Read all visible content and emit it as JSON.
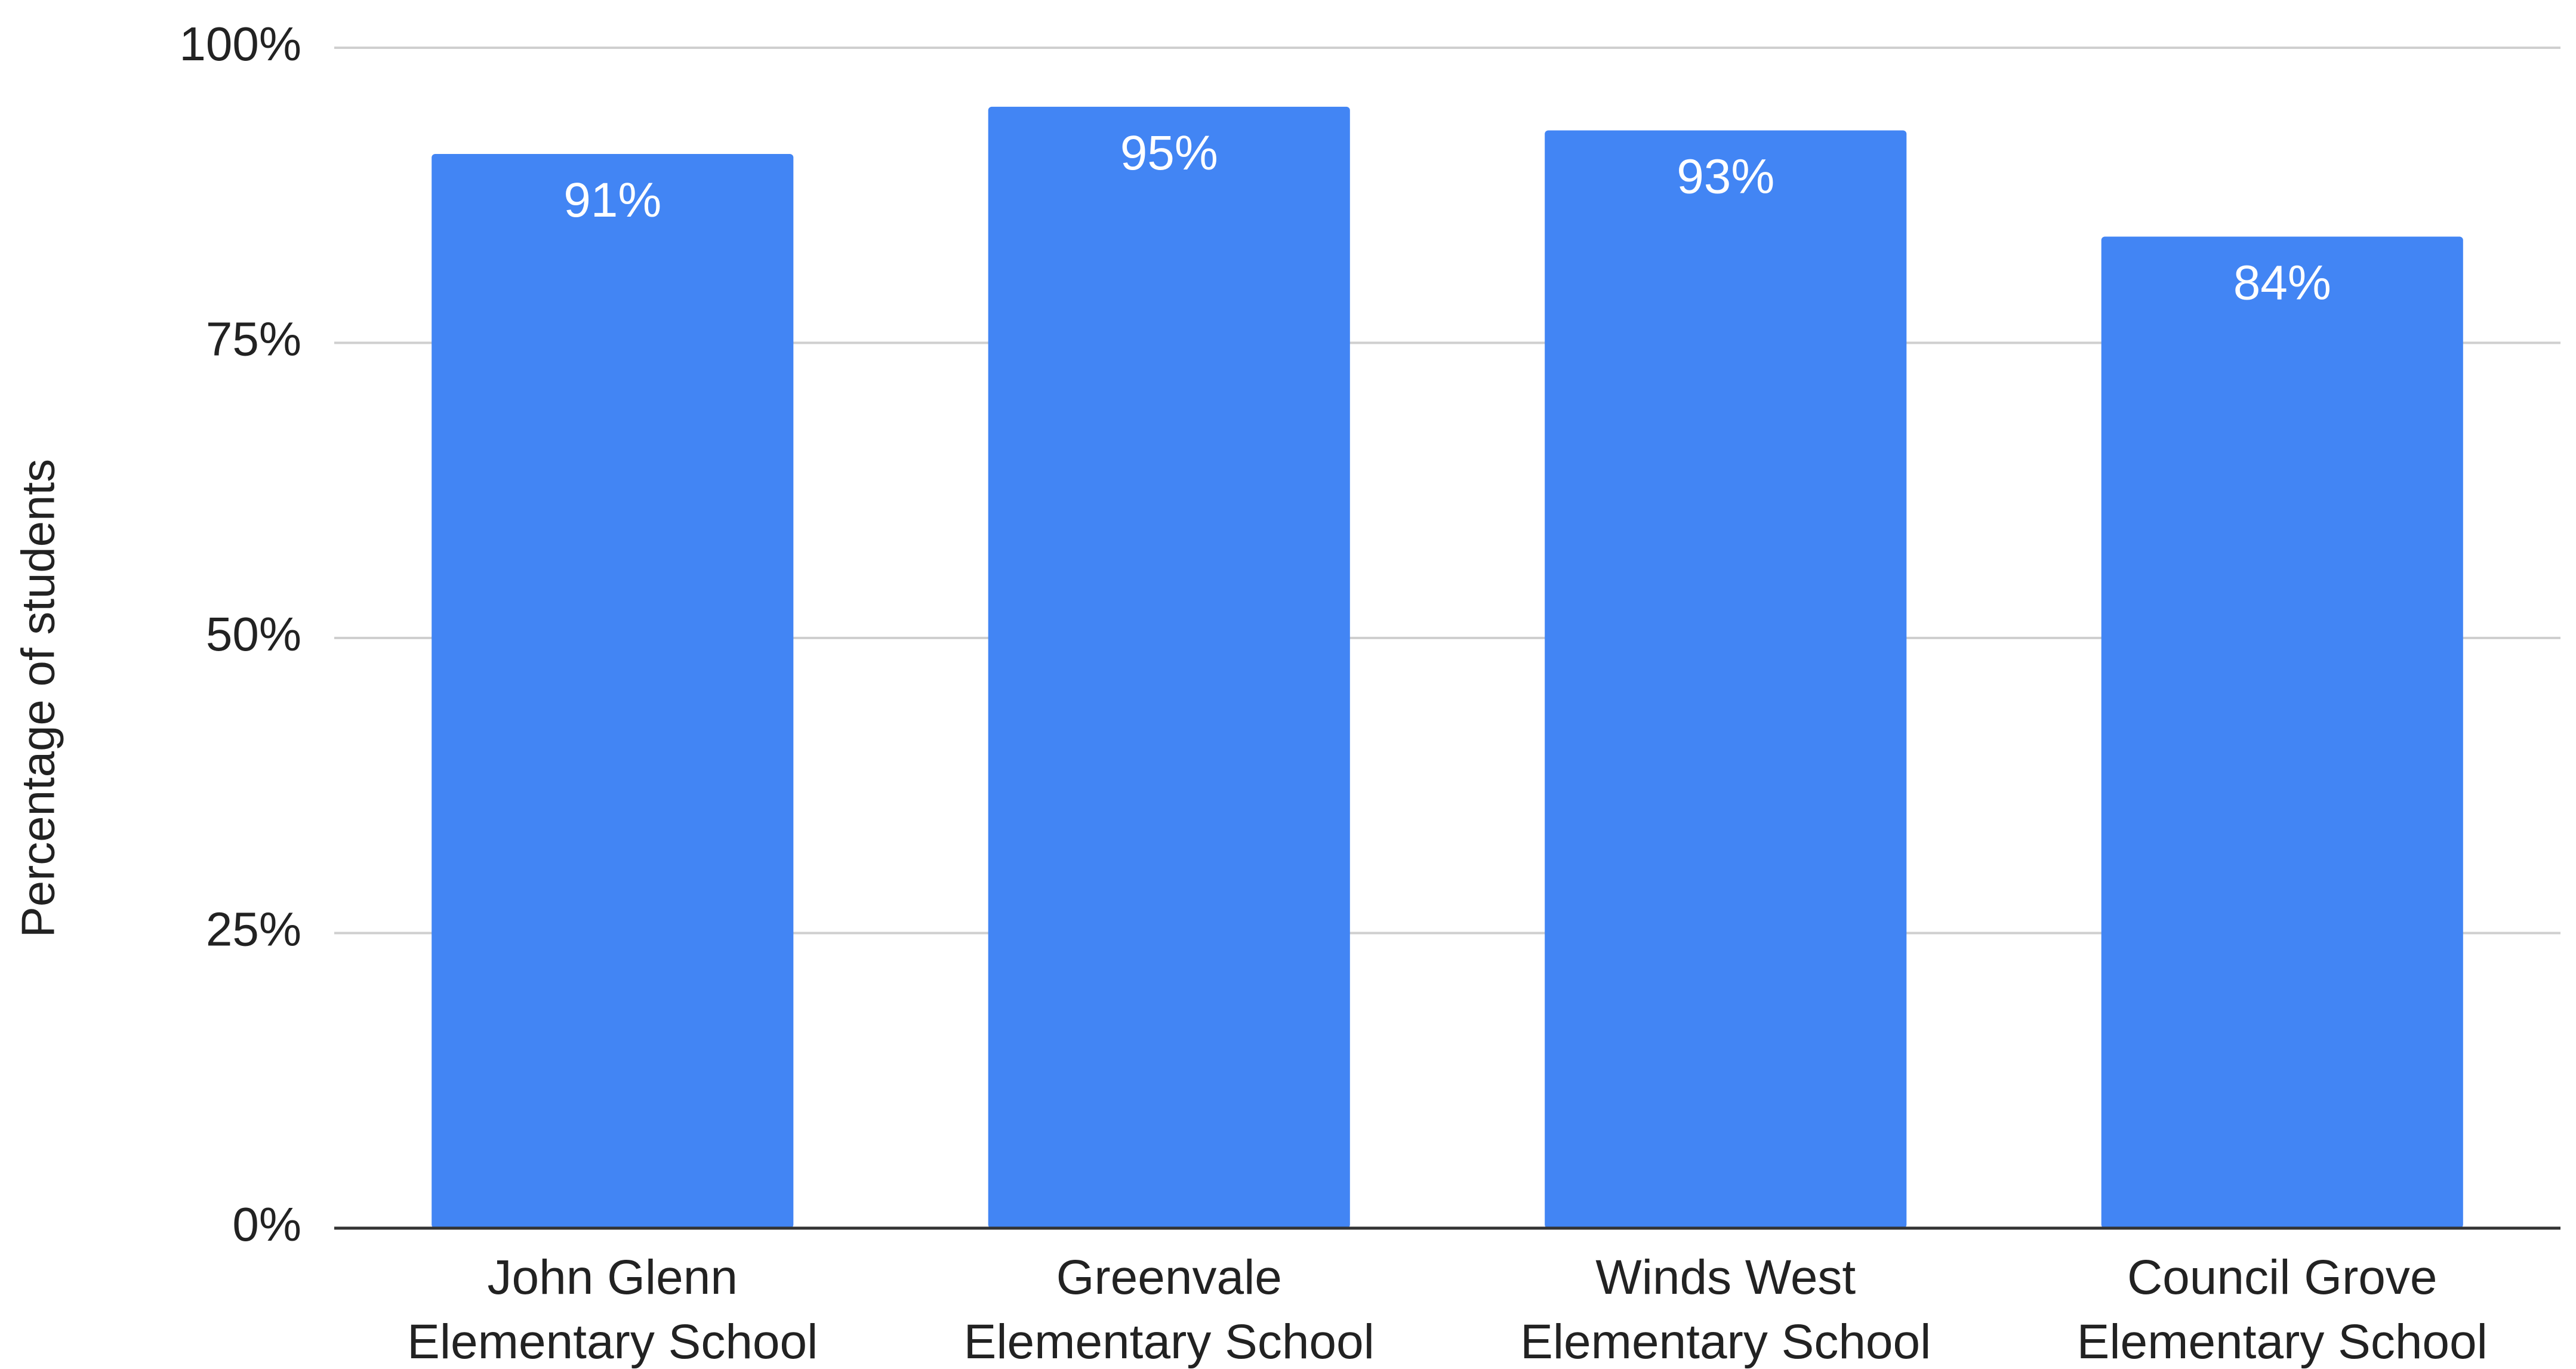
{
  "chart_data": {
    "type": "bar",
    "title": "",
    "xlabel": "",
    "ylabel": "Percentage of students",
    "categories": [
      [
        "John Glenn",
        "Elementary School"
      ],
      [
        "Greenvale",
        "Elementary School"
      ],
      [
        "Winds West",
        "Elementary School"
      ],
      [
        "Council Grove",
        "Elementary School"
      ]
    ],
    "values": [
      91,
      95,
      93,
      84
    ],
    "data_labels": [
      "91%",
      "95%",
      "93%",
      "84%"
    ],
    "ylim": [
      0,
      100
    ],
    "y_ticks": [
      0,
      25,
      50,
      75,
      100
    ],
    "y_tick_labels": [
      "0%",
      "25%",
      "50%",
      "75%",
      "100%"
    ],
    "grid": true,
    "legend": "none",
    "colors": {
      "bar": "#4285f4",
      "gridline": "#cfcfcf",
      "baseline": "#333333",
      "text": "#222222",
      "data_label": "#ffffff"
    }
  }
}
